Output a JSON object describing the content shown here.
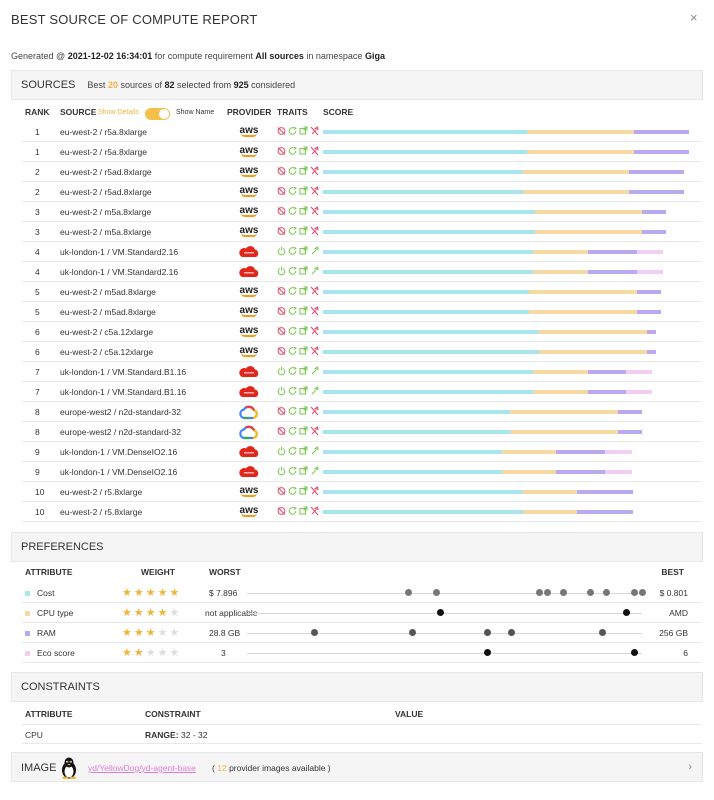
{
  "report": {
    "title": "BEST SOURCE OF COMPUTE REPORT",
    "close_label": "×"
  },
  "generated": {
    "prefix": "Generated @",
    "timestamp": "2021-12-02 16:34:01",
    "mid1": "for compute requirement",
    "requirement": "All sources",
    "mid2": "in namespace",
    "namespace": "Giga"
  },
  "sources": {
    "title": "SOURCES",
    "summary": {
      "best_prefix": "Best",
      "best": "20",
      "of": "sources of",
      "selected": "82",
      "from": "selected from",
      "considered": "925",
      "tail": "considered"
    },
    "columns": {
      "rank": "RANK",
      "source": "SOURCE",
      "show_details": "Show Details",
      "show_name": "Show Name",
      "provider": "PROVIDER",
      "traits": "TRAITS",
      "score": "SCORE"
    },
    "colors": {
      "cost": "#a8e6ef",
      "cpu": "#f7d9a4",
      "ram": "#b9aaf0",
      "eco": "#f3cdf2"
    },
    "rows": [
      {
        "rank": "1",
        "source": "eu-west-2 / r5a.8xlarge",
        "provider": "aws",
        "score": [
          0.557,
          0.292,
          0.151,
          0
        ]
      },
      {
        "rank": "1",
        "source": "eu-west-2 / r5a.8xlarge",
        "provider": "aws",
        "score": [
          0.557,
          0.292,
          0.151,
          0
        ]
      },
      {
        "rank": "2",
        "source": "eu-west-2 / r5ad.8xlarge",
        "provider": "aws",
        "score": [
          0.547,
          0.29,
          0.15,
          0
        ]
      },
      {
        "rank": "2",
        "source": "eu-west-2 / r5ad.8xlarge",
        "provider": "aws",
        "score": [
          0.547,
          0.29,
          0.15,
          0
        ]
      },
      {
        "rank": "3",
        "source": "eu-west-2 / m5a.8xlarge",
        "provider": "aws",
        "score": [
          0.578,
          0.294,
          0.066,
          0
        ]
      },
      {
        "rank": "3",
        "source": "eu-west-2 / m5a.8xlarge",
        "provider": "aws",
        "score": [
          0.578,
          0.294,
          0.066,
          0
        ]
      },
      {
        "rank": "4",
        "source": "uk-london-1 / VM.Standard2.16",
        "provider": "oracle",
        "score": [
          0.573,
          0.15,
          0.134,
          0.073
        ]
      },
      {
        "rank": "4",
        "source": "uk-london-1 / VM.Standard2.16",
        "provider": "oracle",
        "score": [
          0.573,
          0.15,
          0.134,
          0.073
        ]
      },
      {
        "rank": "5",
        "source": "eu-west-2 / m5ad.8xlarge",
        "provider": "aws",
        "score": [
          0.563,
          0.294,
          0.066,
          0
        ]
      },
      {
        "rank": "5",
        "source": "eu-west-2 / m5ad.8xlarge",
        "provider": "aws",
        "score": [
          0.563,
          0.294,
          0.066,
          0
        ]
      },
      {
        "rank": "6",
        "source": "eu-west-2 / c5a.12xlarge",
        "provider": "aws",
        "score": [
          0.59,
          0.295,
          0.025,
          0
        ]
      },
      {
        "rank": "6",
        "source": "eu-west-2 / c5a.12xlarge",
        "provider": "aws",
        "score": [
          0.59,
          0.295,
          0.025,
          0
        ]
      },
      {
        "rank": "7",
        "source": "uk-london-1 / VM.Standard.B1.16",
        "provider": "oracle",
        "score": [
          0.573,
          0.15,
          0.104,
          0.073
        ]
      },
      {
        "rank": "7",
        "source": "uk-london-1 / VM.Standard.B1.16",
        "provider": "oracle",
        "score": [
          0.573,
          0.15,
          0.104,
          0.073
        ]
      },
      {
        "rank": "8",
        "source": "europe-west2 / n2d-standard-32",
        "provider": "google",
        "score": [
          0.511,
          0.295,
          0.066,
          0
        ]
      },
      {
        "rank": "8",
        "source": "europe-west2 / n2d-standard-32",
        "provider": "google",
        "score": [
          0.511,
          0.295,
          0.066,
          0
        ]
      },
      {
        "rank": "9",
        "source": "uk-london-1 / VM.DenseIO2.16",
        "provider": "oracle",
        "score": [
          0.489,
          0.148,
          0.134,
          0.073
        ]
      },
      {
        "rank": "9",
        "source": "uk-london-1 / VM.DenseIO2.16",
        "provider": "oracle",
        "score": [
          0.489,
          0.148,
          0.134,
          0.073
        ]
      },
      {
        "rank": "10",
        "source": "eu-west-2 / r5.8xlarge",
        "provider": "aws",
        "score": [
          0.547,
          0.148,
          0.151,
          0
        ]
      },
      {
        "rank": "10",
        "source": "eu-west-2 / r5.8xlarge",
        "provider": "aws",
        "score": [
          0.547,
          0.148,
          0.151,
          0
        ]
      }
    ]
  },
  "preferences": {
    "title": "PREFERENCES",
    "columns": {
      "attribute": "ATTRIBUTE",
      "weight": "WEIGHT",
      "worst": "WORST",
      "best": "BEST"
    },
    "rows": [
      {
        "attribute": "Cost",
        "color": "#a8e6ef",
        "stars": 5,
        "worst": "$ 7.896",
        "best": "$ 0.801",
        "dots": [
          0.41,
          0.48,
          0.74,
          0.76,
          0.8,
          0.87,
          0.91,
          0.98,
          1.0
        ],
        "dot_color": "#777777"
      },
      {
        "attribute": "CPU type",
        "color": "#f7d9a4",
        "stars": 4,
        "worst": "not applicable",
        "best": "AMD",
        "dots": [
          0.49,
          0.96
        ],
        "dot_color": "#111111"
      },
      {
        "attribute": "RAM",
        "color": "#b9aaf0",
        "stars": 3,
        "worst": "28.8 GB",
        "best": "256 GB",
        "dots": [
          0.17,
          0.42,
          0.61,
          0.67,
          0.9
        ],
        "dot_color": "#555555"
      },
      {
        "attribute": "Eco score",
        "color": "#f3cdf2",
        "stars": 2,
        "worst": "3",
        "best": "6",
        "dots": [
          0.61,
          0.98
        ],
        "dot_color": "#111111"
      }
    ]
  },
  "constraints": {
    "title": "CONSTRAINTS",
    "columns": {
      "attribute": "ATTRIBUTE",
      "constraint": "CONSTRAINT",
      "value": "VALUE"
    },
    "rows": [
      {
        "attribute": "CPU",
        "constraint_label": "RANGE:",
        "constraint_value": "32 - 32",
        "value": ""
      }
    ]
  },
  "image": {
    "title": "IMAGE",
    "icon": "linux-tux-icon",
    "link": "yd/YellowDog/yd-agent-base",
    "avail_open": "(",
    "count": "12",
    "avail_text": "provider images available )"
  }
}
